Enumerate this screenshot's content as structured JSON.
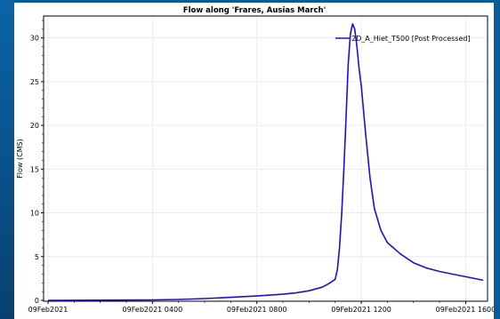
{
  "chart_data": {
    "type": "line",
    "title": "Flow along 'Frares, Ausias March'",
    "xlabel": "",
    "ylabel": "Flow (CMS)",
    "ylim": [
      0,
      32
    ],
    "yticks": [
      0,
      5,
      10,
      15,
      20,
      25,
      30
    ],
    "xlim": [
      "09Feb2021 0000",
      "09Feb2021 1640"
    ],
    "xticks": [
      {
        "label": "09Feb2021",
        "t": "09Feb2021 0000"
      },
      {
        "label": "09Feb2021 0400",
        "t": "09Feb2021 0400"
      },
      {
        "label": "09Feb2021 0800",
        "t": "09Feb2021 0800"
      },
      {
        "label": "09Feb2021 1200",
        "t": "09Feb2021 1200"
      },
      {
        "label": "09Feb2021 1600",
        "t": "09Feb2021 1600"
      }
    ],
    "grid": true,
    "legend_position": "top-right",
    "series": [
      {
        "name": "2D_A_Hiet_T500 [Post Processed]",
        "color": "#1a10d8",
        "points": [
          [
            "09Feb2021 0000",
            0.0
          ],
          [
            "09Feb2021 0200",
            0.02
          ],
          [
            "09Feb2021 0400",
            0.05
          ],
          [
            "09Feb2021 0500",
            0.1
          ],
          [
            "09Feb2021 0600",
            0.2
          ],
          [
            "09Feb2021 0700",
            0.35
          ],
          [
            "09Feb2021 0800",
            0.5
          ],
          [
            "09Feb2021 0900",
            0.7
          ],
          [
            "09Feb2021 0930",
            0.85
          ],
          [
            "09Feb2021 1000",
            1.1
          ],
          [
            "09Feb2021 1030",
            1.5
          ],
          [
            "09Feb2021 1045",
            1.9
          ],
          [
            "09Feb2021 1100",
            2.4
          ],
          [
            "09Feb2021 1105",
            3.5
          ],
          [
            "09Feb2021 1110",
            6.0
          ],
          [
            "09Feb2021 1115",
            10.0
          ],
          [
            "09Feb2021 1120",
            15.0
          ],
          [
            "09Feb2021 1125",
            21.0
          ],
          [
            "09Feb2021 1130",
            27.0
          ],
          [
            "09Feb2021 1135",
            30.5
          ],
          [
            "09Feb2021 1140",
            31.6
          ],
          [
            "09Feb2021 1145",
            31.0
          ],
          [
            "09Feb2021 1150",
            29.0
          ],
          [
            "09Feb2021 1155",
            26.5
          ],
          [
            "09Feb2021 1200",
            24.5
          ],
          [
            "09Feb2021 1210",
            19.0
          ],
          [
            "09Feb2021 1220",
            14.0
          ],
          [
            "09Feb2021 1230",
            10.5
          ],
          [
            "09Feb2021 1245",
            8.0
          ],
          [
            "09Feb2021 1300",
            6.6
          ],
          [
            "09Feb2021 1330",
            5.3
          ],
          [
            "09Feb2021 1400",
            4.3
          ],
          [
            "09Feb2021 1430",
            3.7
          ],
          [
            "09Feb2021 1500",
            3.3
          ],
          [
            "09Feb2021 1530",
            3.0
          ],
          [
            "09Feb2021 1600",
            2.7
          ],
          [
            "09Feb2021 1630",
            2.4
          ],
          [
            "09Feb2021 1640",
            2.3
          ]
        ]
      }
    ]
  }
}
